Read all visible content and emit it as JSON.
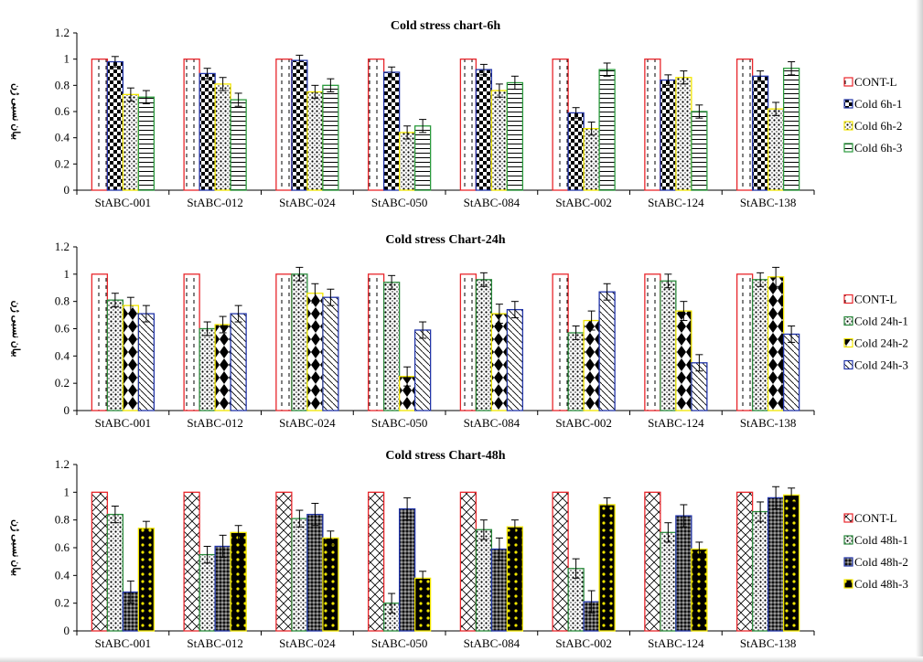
{
  "chart_data": [
    {
      "type": "bar",
      "title": "Cold  stress chart-6h",
      "ylabel": "بیان نسبی ژن",
      "ylim": [
        0,
        1.2
      ],
      "yticks": [
        "0",
        "0.2",
        "0.4",
        "0.6",
        "0.8",
        "1",
        "1.2"
      ],
      "grid": false,
      "legend_position": "right",
      "categories": [
        "StABC-001",
        "StABC-012",
        "StABC-024",
        "StABC-050",
        "StABC-084",
        "StABC-002",
        "StABC-124",
        "StABC-138"
      ],
      "series": [
        {
          "name": "CONT-L",
          "values": [
            1,
            1,
            1,
            1,
            1,
            1,
            1,
            1
          ],
          "errors": [
            0,
            0,
            0,
            0,
            0,
            0,
            0,
            0
          ],
          "color": "#e8262b",
          "pattern": "dashes"
        },
        {
          "name": "Cold 6h-1",
          "values": [
            0.98,
            0.89,
            0.99,
            0.9,
            0.92,
            0.59,
            0.84,
            0.87
          ],
          "errors": [
            0.04,
            0.04,
            0.04,
            0.04,
            0.04,
            0.04,
            0.04,
            0.04
          ],
          "color": "#2235a8",
          "pattern": "checker"
        },
        {
          "name": "Cold 6h-2",
          "values": [
            0.73,
            0.81,
            0.75,
            0.44,
            0.76,
            0.47,
            0.86,
            0.62
          ],
          "errors": [
            0.05,
            0.05,
            0.05,
            0.05,
            0.05,
            0.05,
            0.05,
            0.05
          ],
          "color": "#f2e600",
          "pattern": "dots"
        },
        {
          "name": "Cold 6h-3",
          "values": [
            0.71,
            0.69,
            0.8,
            0.49,
            0.82,
            0.92,
            0.6,
            0.93
          ],
          "errors": [
            0.05,
            0.05,
            0.05,
            0.05,
            0.05,
            0.05,
            0.05,
            0.05
          ],
          "color": "#2a9a3c",
          "pattern": "hlines"
        }
      ]
    },
    {
      "type": "bar",
      "title": "Cold  stress Chart-24h",
      "ylabel": "بیان نسبی ژن",
      "ylim": [
        0,
        1.2
      ],
      "yticks": [
        "0",
        "0.2",
        "0.4",
        "0.6",
        "0.8",
        "1",
        "1.2"
      ],
      "grid": false,
      "legend_position": "right",
      "categories": [
        "StABC-001",
        "StABC-012",
        "StABC-024",
        "StABC-050",
        "StABC-084",
        "StABC-002",
        "StABC-124",
        "StABC-138"
      ],
      "series": [
        {
          "name": "CONT-L",
          "values": [
            1,
            1,
            1,
            1,
            1,
            1,
            1,
            1
          ],
          "errors": [
            0,
            0,
            0,
            0,
            0,
            0,
            0,
            0
          ],
          "color": "#e8262b",
          "pattern": "dashes"
        },
        {
          "name": "Cold 24h-1",
          "values": [
            0.81,
            0.6,
            1.0,
            0.94,
            0.96,
            0.57,
            0.95,
            0.96
          ],
          "errors": [
            0.05,
            0.05,
            0.05,
            0.05,
            0.05,
            0.05,
            0.05,
            0.05
          ],
          "color": "#2a8a3c",
          "pattern": "dots"
        },
        {
          "name": "Cold 24h-2",
          "values": [
            0.77,
            0.63,
            0.86,
            0.25,
            0.71,
            0.66,
            0.73,
            0.98
          ],
          "errors": [
            0.06,
            0.06,
            0.07,
            0.07,
            0.07,
            0.07,
            0.07,
            0.07
          ],
          "color": "#f2e600",
          "pattern": "diamonds"
        },
        {
          "name": "Cold 24h-3",
          "values": [
            0.71,
            0.71,
            0.83,
            0.59,
            0.74,
            0.87,
            0.35,
            0.56
          ],
          "errors": [
            0.06,
            0.06,
            0.06,
            0.06,
            0.06,
            0.06,
            0.06,
            0.06
          ],
          "color": "#2235a8",
          "pattern": "diag"
        }
      ]
    },
    {
      "type": "bar",
      "title": "Cold  stress Chart-48h",
      "ylabel": "بیان نسبی ژن",
      "ylim": [
        0,
        1.2
      ],
      "yticks": [
        "0",
        "0.2",
        "0.4",
        "0.6",
        "0.8",
        "1",
        "1.2"
      ],
      "grid": false,
      "legend_position": "right",
      "categories": [
        "StABC-001",
        "StABC-012",
        "StABC-024",
        "StABC-050",
        "StABC-084",
        "StABC-002",
        "StABC-124",
        "StABC-138"
      ],
      "series": [
        {
          "name": "CONT-L",
          "values": [
            1,
            1,
            1,
            1,
            1,
            1,
            1,
            1
          ],
          "errors": [
            0,
            0,
            0,
            0,
            0,
            0,
            0,
            0
          ],
          "color": "#e8262b",
          "pattern": "weave"
        },
        {
          "name": "Cold 48h-1",
          "values": [
            0.84,
            0.55,
            0.81,
            0.2,
            0.73,
            0.45,
            0.71,
            0.86
          ],
          "errors": [
            0.06,
            0.06,
            0.06,
            0.07,
            0.07,
            0.07,
            0.07,
            0.07
          ],
          "color": "#2a8a3c",
          "pattern": "dots"
        },
        {
          "name": "Cold 48h-2",
          "values": [
            0.28,
            0.61,
            0.84,
            0.88,
            0.59,
            0.21,
            0.83,
            0.96
          ],
          "errors": [
            0.08,
            0.08,
            0.08,
            0.08,
            0.08,
            0.08,
            0.08,
            0.08
          ],
          "color": "#2235a8",
          "pattern": "dense"
        },
        {
          "name": "Cold 48h-3",
          "values": [
            0.74,
            0.71,
            0.67,
            0.38,
            0.75,
            0.91,
            0.59,
            0.98
          ],
          "errors": [
            0.05,
            0.05,
            0.05,
            0.05,
            0.05,
            0.05,
            0.05,
            0.05
          ],
          "color": "#f2e600",
          "pattern": "black-dots"
        }
      ]
    }
  ]
}
